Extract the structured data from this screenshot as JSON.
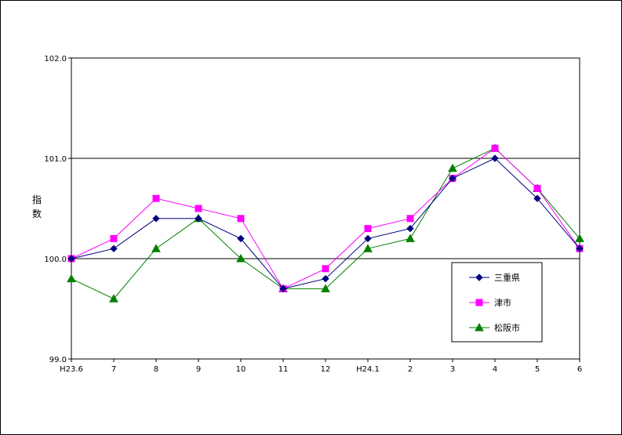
{
  "chart_data": {
    "type": "line",
    "title": "",
    "ylabel": "指数",
    "xlabel": "",
    "categories": [
      "H23.6",
      "7",
      "8",
      "9",
      "10",
      "11",
      "12",
      "H24.1",
      "2",
      "3",
      "4",
      "5",
      "6"
    ],
    "ylim": [
      99.0,
      102.0
    ],
    "yticks": [
      "99.0",
      "100.0",
      "101.0",
      "102.0"
    ],
    "gridlines_at": [
      100.0,
      101.0
    ],
    "legend_position": "lower-right",
    "series": [
      {
        "name": "三重県",
        "color": "#000080",
        "marker": "diamond",
        "values": [
          100.0,
          100.1,
          100.4,
          100.4,
          100.2,
          99.7,
          99.8,
          100.2,
          100.3,
          100.8,
          101.0,
          100.6,
          100.1
        ]
      },
      {
        "name": "津市",
        "color": "#ff00ff",
        "marker": "square",
        "values": [
          100.0,
          100.2,
          100.6,
          100.5,
          100.4,
          99.7,
          99.9,
          100.3,
          100.4,
          100.8,
          101.1,
          100.7,
          100.1
        ]
      },
      {
        "name": "松阪市",
        "color": "#008000",
        "marker": "triangle",
        "values": [
          99.8,
          99.6,
          100.1,
          100.4,
          100.0,
          99.7,
          99.7,
          100.1,
          100.2,
          100.9,
          101.1,
          100.7,
          100.2
        ]
      }
    ]
  }
}
